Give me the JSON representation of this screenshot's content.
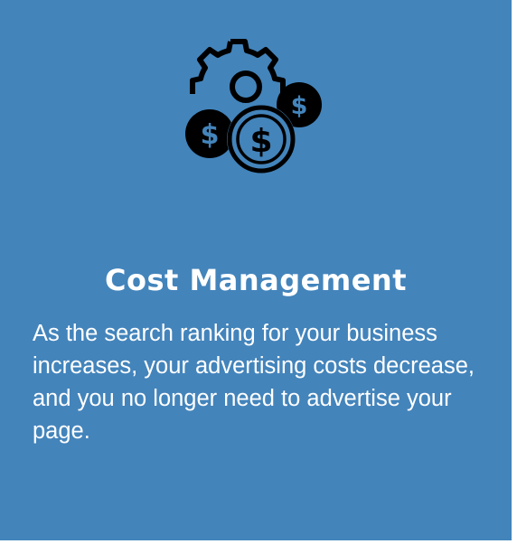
{
  "card": {
    "background_color": "#4384bb",
    "icon": "gear-with-dollar-coins-icon",
    "title": "Cost Management",
    "body": "As the search ranking for your business increases, your advertising costs decrease, and you no longer need to advertise your page."
  }
}
